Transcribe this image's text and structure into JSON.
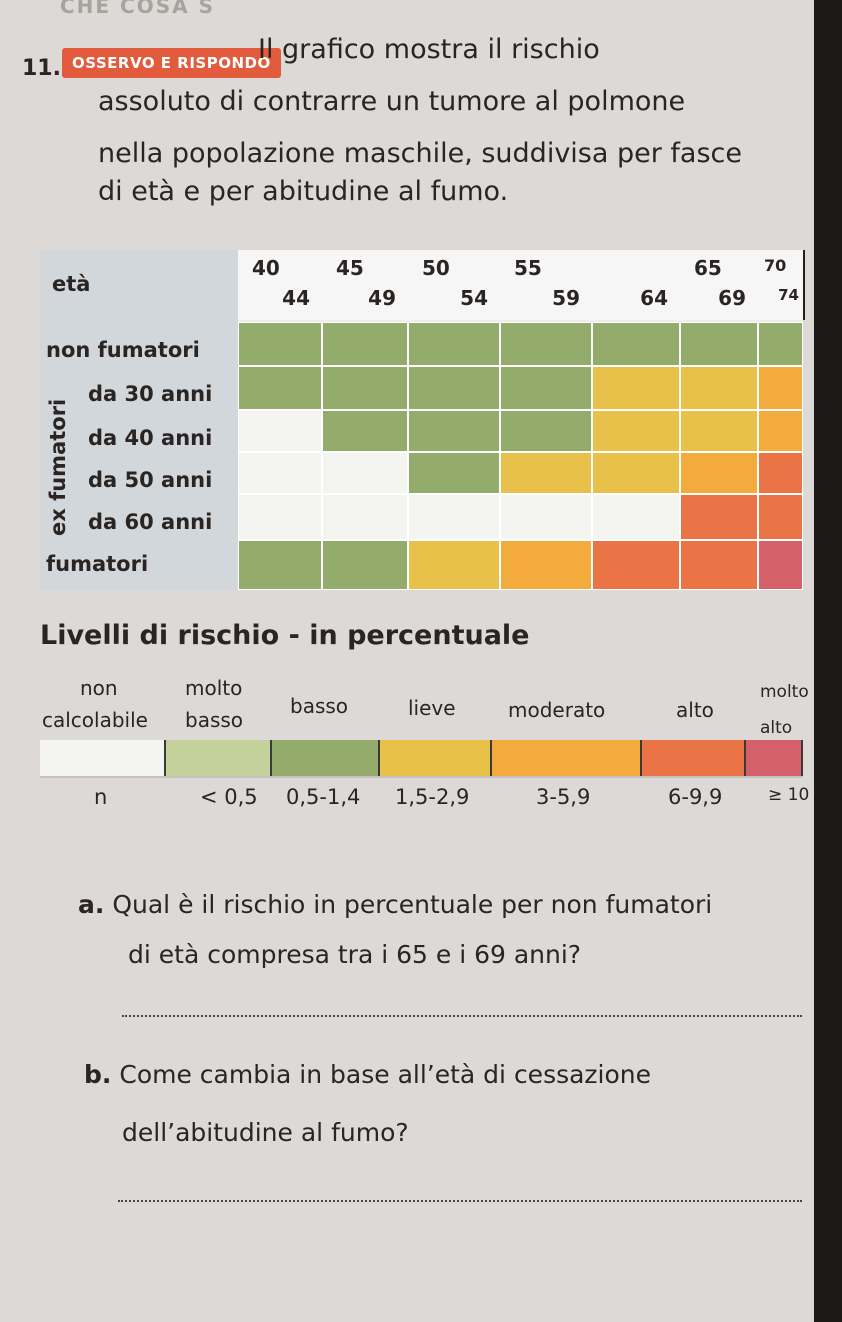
{
  "header": {
    "fragment": "CHE COSA S",
    "exercise_number": "11.",
    "badge": "OSSERVO E RISPONDO",
    "intro_lines": [
      "Il grafico mostra il rischio",
      "assoluto di contrarre un tumore al polmone",
      "nella popolazione maschile, suddivisa per fasce",
      "di età e per abitudine al fumo."
    ]
  },
  "table": {
    "eta_label": "età",
    "ex_fumatori_label": "ex fumatori",
    "age_groups": [
      {
        "top": "40",
        "bottom": "44"
      },
      {
        "top": "45",
        "bottom": "49"
      },
      {
        "top": "50",
        "bottom": "54"
      },
      {
        "top": "55",
        "bottom": "59"
      },
      {
        "top": "",
        "bottom": "64"
      },
      {
        "top": "65",
        "bottom": "69"
      },
      {
        "top": "70",
        "bottom": "74"
      }
    ],
    "rows": [
      {
        "label": "non fumatori",
        "levels": [
          2,
          2,
          2,
          2,
          2,
          2,
          2
        ]
      },
      {
        "label": "da 30 anni",
        "levels": [
          2,
          2,
          2,
          2,
          3,
          3,
          4
        ]
      },
      {
        "label": "da 40 anni",
        "levels": [
          0,
          2,
          2,
          2,
          3,
          3,
          4
        ]
      },
      {
        "label": "da 50 anni",
        "levels": [
          0,
          0,
          2,
          3,
          3,
          4,
          5
        ]
      },
      {
        "label": "da 60 anni",
        "levels": [
          0,
          0,
          0,
          0,
          0,
          5,
          5
        ]
      },
      {
        "label": "fumatori",
        "levels": [
          2,
          2,
          3,
          4,
          5,
          5,
          6
        ]
      }
    ]
  },
  "legend": {
    "title": "Livelli di rischio - in percentuale",
    "levels": [
      {
        "label_1": "non",
        "label_2": "calcolabile",
        "range": "n",
        "color": "#f4f4f0"
      },
      {
        "label_1": "molto",
        "label_2": "basso",
        "range": "< 0,5",
        "color": "#c4d19a"
      },
      {
        "label_1": "",
        "label_2": "basso",
        "range": "0,5-1,4",
        "color": "#93ac6c"
      },
      {
        "label_1": "",
        "label_2": "lieve",
        "range": "1,5-2,9",
        "color": "#e8c14a"
      },
      {
        "label_1": "",
        "label_2": "moderato",
        "range": "3-5,9",
        "color": "#f3ab3e"
      },
      {
        "label_1": "",
        "label_2": "alto",
        "range": "6-9,9",
        "color": "#eb7447"
      },
      {
        "label_1": "molto",
        "label_2": "alto",
        "range": "≥ 10",
        "color": "#d4606a"
      }
    ]
  },
  "questions": {
    "a_letter": "a.",
    "a_line1": "Qual è il rischio in percentuale per non fumatori",
    "a_line2": "di età compresa tra i 65 e i 69 anni?",
    "b_letter": "b.",
    "b_line1": "Come cambia in base all’età di cessazione",
    "b_line2": "dell’abitudine al fumo?"
  }
}
